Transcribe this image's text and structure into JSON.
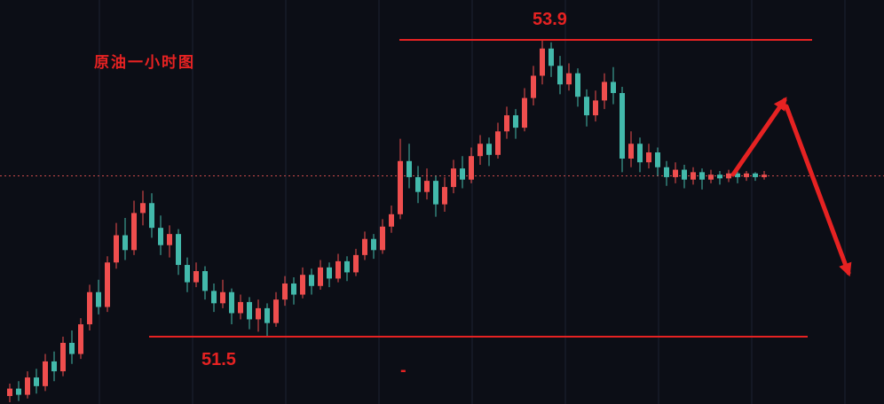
{
  "chart_data": {
    "type": "candlestick",
    "title": "原油一小时图",
    "timeframe": "1H",
    "resistance": {
      "label": "53.9",
      "price": 53.9
    },
    "support": {
      "label": "51.5",
      "price": 51.5
    },
    "current_price": 52.8,
    "ylim": [
      50.95,
      54.15
    ],
    "grid": "vertical-only",
    "legend": "none",
    "axis_tick_labels": "none-visible",
    "footer_dash": "-",
    "colors": {
      "background": "#0c0e16",
      "grid": "#1c2233",
      "up": "#ef4e4e",
      "down": "#43b9ab",
      "level": "#e62222",
      "annotation": "#e62222",
      "dotted": "#c94a4a",
      "label": "#e62222"
    },
    "candles": [
      [
        51.02,
        51.12,
        50.97,
        51.08
      ],
      [
        51.08,
        51.14,
        50.98,
        51.03
      ],
      [
        51.03,
        51.22,
        51.0,
        51.17
      ],
      [
        51.17,
        51.24,
        51.04,
        51.1
      ],
      [
        51.1,
        51.36,
        51.06,
        51.3
      ],
      [
        51.3,
        51.38,
        51.14,
        51.22
      ],
      [
        51.22,
        51.5,
        51.18,
        51.45
      ],
      [
        51.45,
        51.55,
        51.28,
        51.36
      ],
      [
        51.36,
        51.65,
        51.32,
        51.6
      ],
      [
        51.6,
        51.92,
        51.55,
        51.86
      ],
      [
        51.86,
        51.96,
        51.68,
        51.74
      ],
      [
        51.74,
        52.15,
        51.7,
        52.1
      ],
      [
        52.1,
        52.42,
        52.05,
        52.32
      ],
      [
        52.32,
        52.46,
        52.12,
        52.2
      ],
      [
        52.2,
        52.6,
        52.16,
        52.5
      ],
      [
        52.5,
        52.68,
        52.4,
        52.58
      ],
      [
        52.58,
        52.66,
        52.3,
        52.38
      ],
      [
        52.38,
        52.48,
        52.16,
        52.24
      ],
      [
        52.24,
        52.4,
        52.14,
        52.33
      ],
      [
        52.33,
        52.37,
        52.0,
        52.08
      ],
      [
        52.08,
        52.14,
        51.86,
        51.94
      ],
      [
        51.94,
        52.1,
        51.9,
        52.03
      ],
      [
        52.03,
        52.07,
        51.8,
        51.87
      ],
      [
        51.87,
        51.93,
        51.7,
        51.77
      ],
      [
        51.77,
        51.96,
        51.73,
        51.86
      ],
      [
        51.86,
        51.89,
        51.6,
        51.69
      ],
      [
        51.69,
        51.84,
        51.64,
        51.78
      ],
      [
        51.78,
        51.82,
        51.56,
        51.64
      ],
      [
        51.64,
        51.8,
        51.54,
        51.73
      ],
      [
        51.73,
        51.77,
        51.5,
        51.61
      ],
      [
        51.61,
        51.86,
        51.58,
        51.8
      ],
      [
        51.8,
        51.99,
        51.75,
        51.93
      ],
      [
        51.93,
        51.98,
        51.76,
        51.84
      ],
      [
        51.84,
        52.06,
        51.81,
        52.0
      ],
      [
        52.0,
        52.05,
        51.84,
        51.91
      ],
      [
        51.91,
        52.12,
        51.88,
        52.06
      ],
      [
        52.06,
        52.1,
        51.9,
        51.97
      ],
      [
        51.97,
        52.17,
        51.94,
        52.11
      ],
      [
        52.11,
        52.15,
        51.95,
        52.02
      ],
      [
        52.02,
        52.21,
        51.99,
        52.16
      ],
      [
        52.16,
        52.35,
        52.12,
        52.29
      ],
      [
        52.29,
        52.33,
        52.13,
        52.2
      ],
      [
        52.2,
        52.45,
        52.17,
        52.39
      ],
      [
        52.39,
        52.56,
        52.34,
        52.49
      ],
      [
        52.49,
        53.1,
        52.45,
        52.92
      ],
      [
        52.92,
        53.06,
        52.7,
        52.79
      ],
      [
        52.79,
        52.88,
        52.58,
        52.67
      ],
      [
        52.67,
        52.86,
        52.61,
        52.76
      ],
      [
        52.76,
        52.8,
        52.47,
        52.57
      ],
      [
        52.57,
        52.79,
        52.51,
        52.71
      ],
      [
        52.71,
        52.93,
        52.66,
        52.86
      ],
      [
        52.86,
        52.96,
        52.7,
        52.77
      ],
      [
        52.77,
        53.03,
        52.74,
        52.96
      ],
      [
        52.96,
        53.13,
        52.89,
        53.06
      ],
      [
        53.06,
        53.11,
        52.88,
        52.97
      ],
      [
        52.97,
        53.23,
        52.94,
        53.16
      ],
      [
        53.16,
        53.36,
        53.1,
        53.29
      ],
      [
        53.29,
        53.34,
        53.1,
        53.19
      ],
      [
        53.19,
        53.51,
        53.16,
        53.43
      ],
      [
        53.43,
        53.69,
        53.37,
        53.61
      ],
      [
        53.61,
        53.9,
        53.54,
        53.83
      ],
      [
        53.83,
        53.88,
        53.6,
        53.69
      ],
      [
        53.69,
        53.77,
        53.46,
        53.54
      ],
      [
        53.54,
        53.71,
        53.49,
        53.63
      ],
      [
        53.63,
        53.67,
        53.36,
        53.44
      ],
      [
        53.44,
        53.5,
        53.2,
        53.29
      ],
      [
        53.29,
        53.49,
        53.24,
        53.41
      ],
      [
        53.41,
        53.63,
        53.34,
        53.56
      ],
      [
        53.56,
        53.68,
        53.38,
        53.47
      ],
      [
        53.47,
        53.52,
        52.83,
        52.94
      ],
      [
        52.94,
        53.16,
        52.87,
        53.06
      ],
      [
        53.06,
        53.11,
        52.83,
        52.91
      ],
      [
        52.91,
        53.06,
        52.86,
        52.99
      ],
      [
        52.99,
        53.03,
        52.8,
        52.87
      ],
      [
        52.87,
        52.92,
        52.72,
        52.79
      ],
      [
        52.79,
        52.91,
        52.74,
        52.85
      ],
      [
        52.85,
        52.89,
        52.7,
        52.77
      ],
      [
        52.77,
        52.87,
        52.73,
        52.83
      ],
      [
        52.83,
        52.86,
        52.69,
        52.77
      ],
      [
        52.77,
        52.85,
        52.74,
        52.81
      ],
      [
        52.81,
        52.84,
        52.73,
        52.78
      ],
      [
        52.78,
        52.85,
        52.75,
        52.82
      ],
      [
        52.82,
        52.84,
        52.74,
        52.79
      ],
      [
        52.79,
        52.84,
        52.76,
        52.82
      ],
      [
        52.82,
        52.83,
        52.76,
        52.79
      ],
      [
        52.79,
        52.84,
        52.77,
        52.81
      ]
    ],
    "annotation_arrow": {
      "description": "rise-then-fall forecast arrow",
      "segments": [
        [
          826,
          197,
          884,
          113
        ],
        [
          886,
          120,
          956,
          308
        ]
      ]
    }
  }
}
